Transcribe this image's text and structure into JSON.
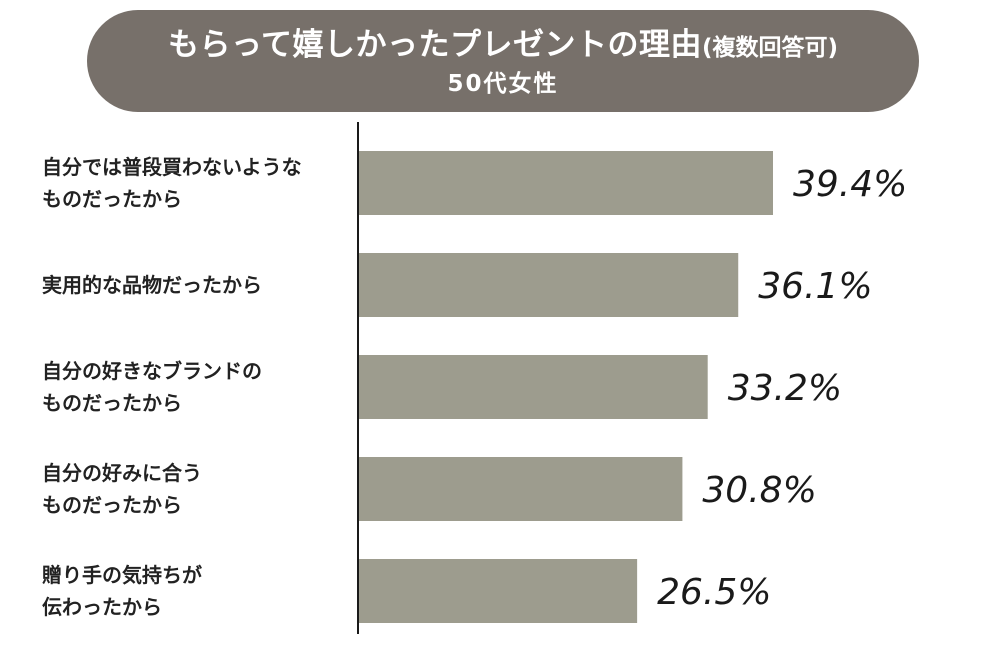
{
  "header": {
    "title_main": "もらって嬉しかったプレゼントの理由",
    "title_note": "(複数回答可)",
    "subtitle": "50代女性"
  },
  "colors": {
    "title_background": "#77706a",
    "title_text": "#ffffff",
    "bar": "#9d9c8e",
    "axis": "#1a1a1a",
    "label_text": "#222222"
  },
  "chart_data": {
    "type": "bar",
    "orientation": "horizontal",
    "title": "もらって嬉しかったプレゼントの理由(複数回答可)",
    "subtitle": "50代女性",
    "categories": [
      [
        "自分では普段買わないような",
        "ものだったから"
      ],
      [
        "実用的な品物だったから"
      ],
      [
        "自分の好きなブランドの",
        "ものだったから"
      ],
      [
        "自分の好みに合う",
        "ものだったから"
      ],
      [
        "贈り手の気持ちが",
        "伝わったから"
      ]
    ],
    "values": [
      39.4,
      36.1,
      33.2,
      30.8,
      26.5
    ],
    "value_labels": [
      "39.4%",
      "36.1%",
      "33.2%",
      "30.8%",
      "26.5%"
    ],
    "unit": "%",
    "xlim": [
      0,
      45
    ],
    "grid": false,
    "legend": "none"
  }
}
